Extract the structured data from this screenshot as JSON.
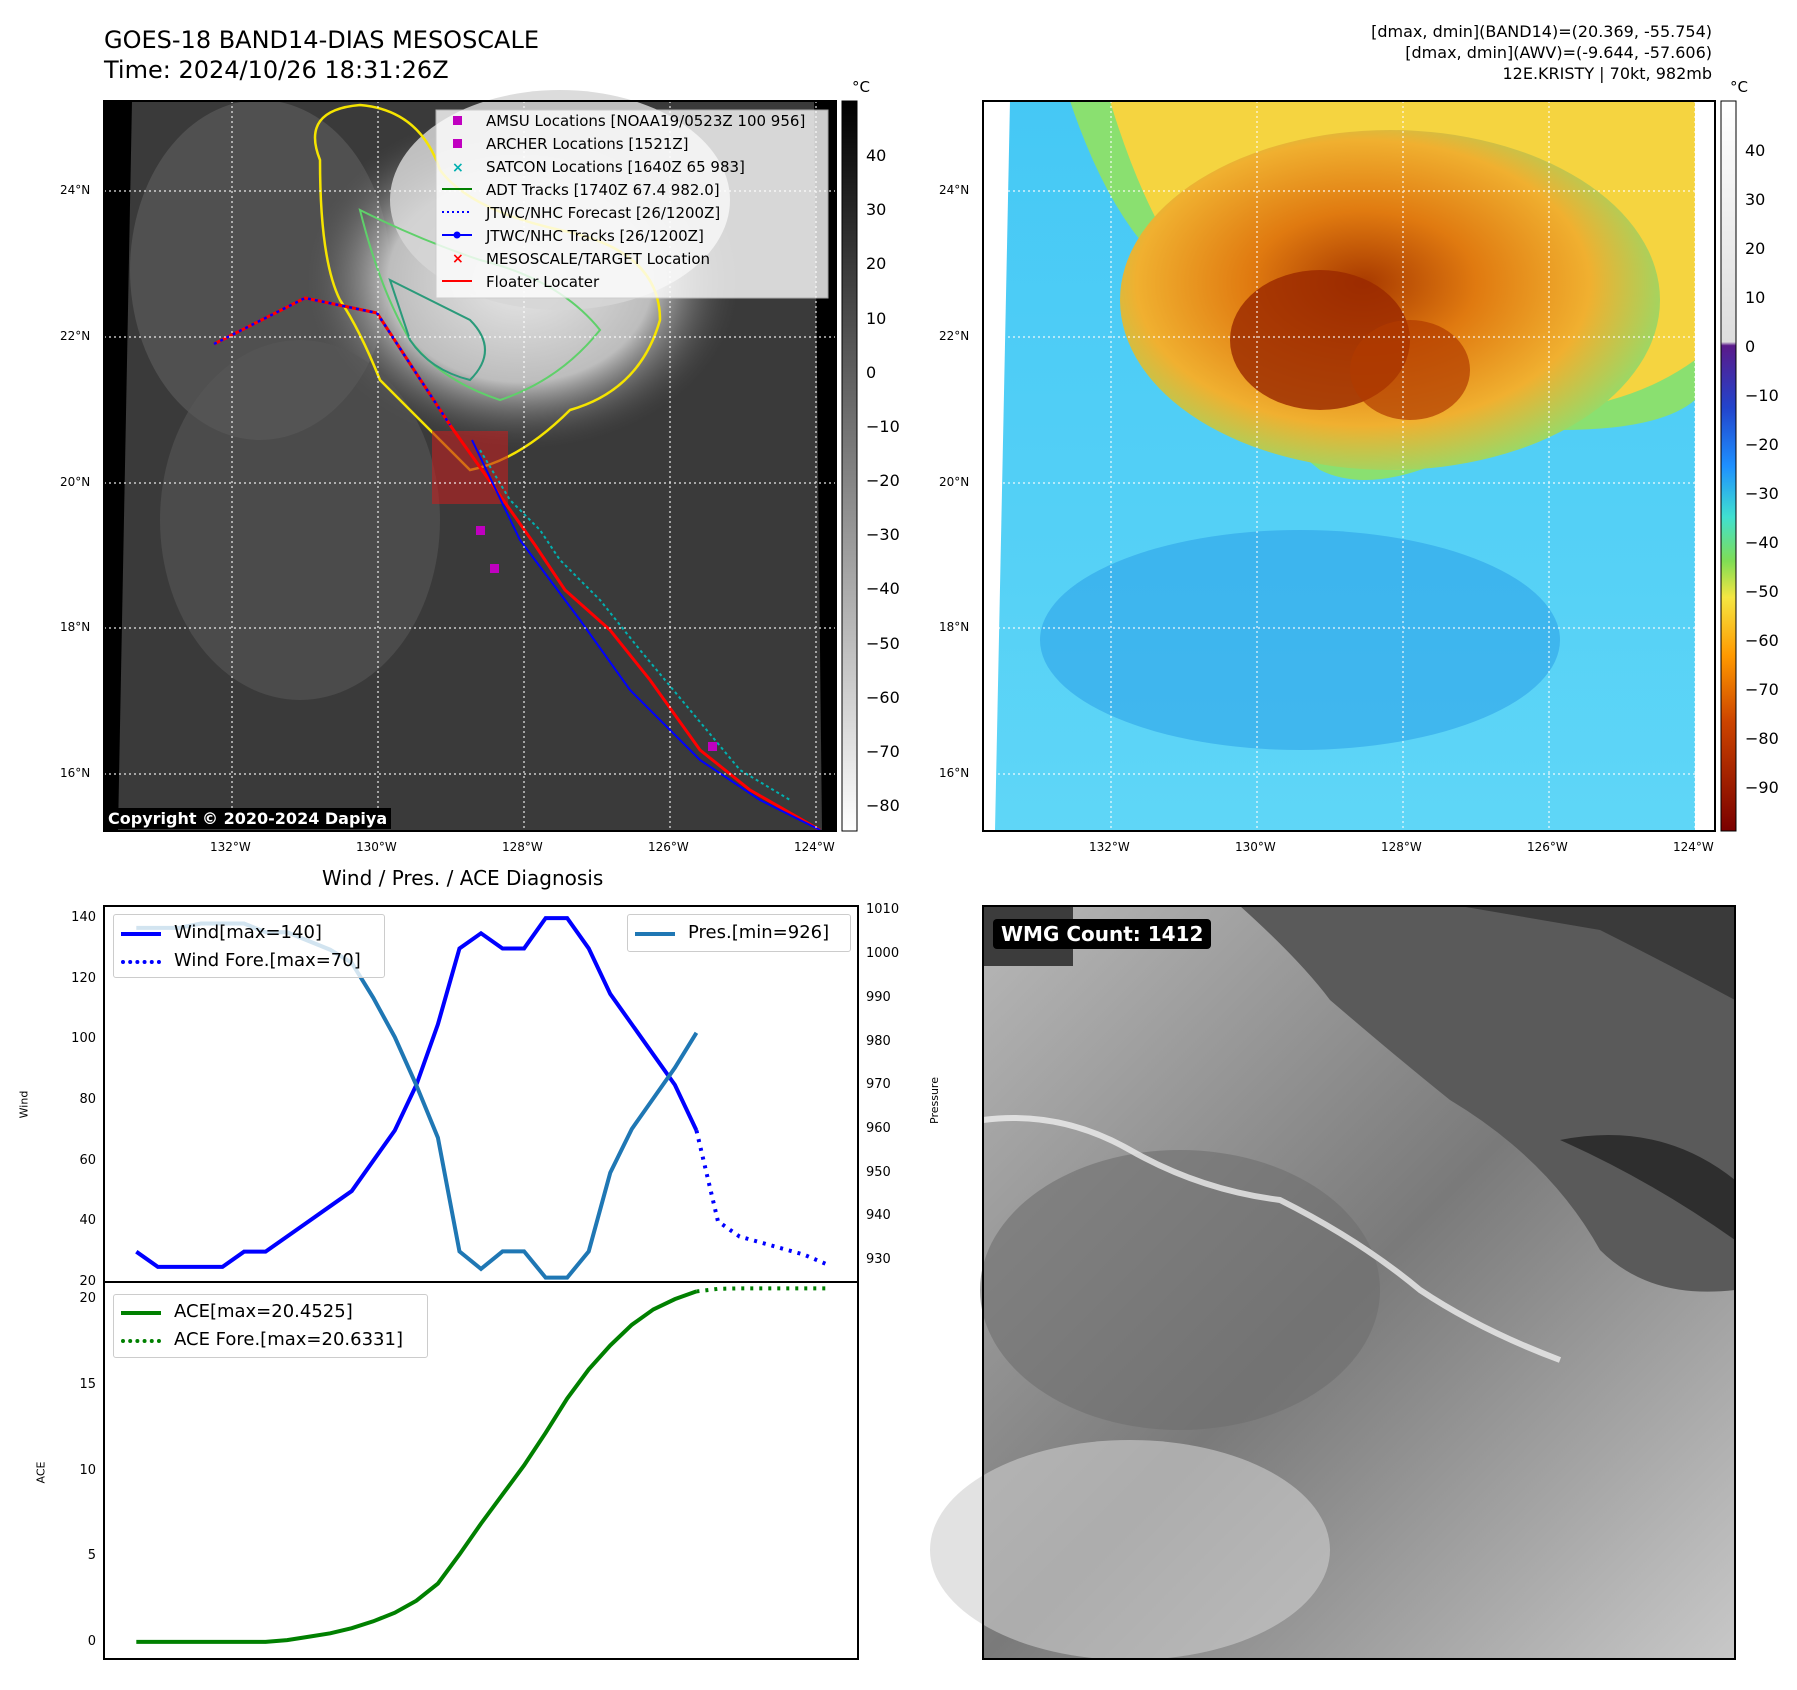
{
  "colors": {
    "wind": "#0000ff",
    "pres": "#1f77b4",
    "ace": "#008000",
    "amsu": "#c000c0",
    "archer": "#c000c0",
    "satcon": "#00b0b0",
    "adt": "#008000",
    "jtwc_forecast": "#0000ff",
    "jtwc_tracks": "#0000ff",
    "target": "#ff0000",
    "floater": "#ff0000"
  },
  "header": {
    "title_line1": "GOES-18 BAND14-DIAS MESOSCALE",
    "title_line2": "Time: 2024/10/26 18:31:26Z",
    "info_line1": "[dmax, dmin](BAND14)=(20.369, -55.754)",
    "info_line2": "[dmax, dmin](AWV)=(-9.644, -57.606)",
    "info_line3": "12E.KRISTY | 70kt, 982mb"
  },
  "map_axes": {
    "lat_labels": [
      "24°N",
      "22°N",
      "20°N",
      "18°N",
      "16°N"
    ],
    "lon_labels": [
      "132°W",
      "130°W",
      "128°W",
      "126°W",
      "124°W"
    ]
  },
  "ir_panel": {
    "legend": [
      {
        "label": "AMSU Locations [NOAA19/0523Z 100 956]",
        "icon": "magenta-square-icon"
      },
      {
        "label": "ARCHER Locations [1521Z]",
        "icon": "magenta-square-icon"
      },
      {
        "label": "SATCON Locations [1640Z 65 983]",
        "icon": "cyan-x-icon"
      },
      {
        "label": "ADT Tracks [1740Z 67.4 982.0]",
        "icon": "green-line-icon"
      },
      {
        "label": "JTWC/NHC Forecast [26/1200Z]",
        "icon": "blue-dotted-line-icon"
      },
      {
        "label": "JTWC/NHC Tracks [26/1200Z]",
        "icon": "blue-dot-line-icon"
      },
      {
        "label": "MESOSCALE/TARGET Location",
        "icon": "red-x-icon"
      },
      {
        "label": "Floater Locater",
        "icon": "red-line-icon"
      }
    ],
    "copyright": "Copyright © 2020-2024 Dapiya",
    "colorbar_unit": "°C",
    "colorbar_ticks": [
      "40",
      "30",
      "20",
      "10",
      "0",
      "−10",
      "−20",
      "−30",
      "−40",
      "−50",
      "−60",
      "−70",
      "−80"
    ]
  },
  "wv_panel": {
    "colorbar_unit": "°C",
    "colorbar_ticks": [
      "40",
      "30",
      "20",
      "10",
      "0",
      "−10",
      "−20",
      "−30",
      "−40",
      "−50",
      "−60",
      "−70",
      "−80",
      "−90"
    ]
  },
  "wmg_panel": {
    "label": "WMG Count: 1412"
  },
  "chart_data": [
    {
      "type": "line",
      "title": "Wind / Pres. / ACE Diagnosis",
      "ylabel": "Wind",
      "ylabel_right": "Pressure",
      "ylim": [
        20,
        144
      ],
      "ylim_right": [
        925,
        1011
      ],
      "yticks": [
        20,
        40,
        60,
        80,
        100,
        120,
        140
      ],
      "yticks_right": [
        930,
        940,
        950,
        960,
        970,
        980,
        990,
        1000,
        1010
      ],
      "legend_left": [
        "Wind[max=140]",
        "Wind Fore.[max=70]"
      ],
      "legend_right": [
        "Pres.[min=926]"
      ],
      "series": [
        {
          "name": "Wind[max=140]",
          "axis": "left",
          "style": "solid",
          "x": [
            0,
            1,
            2,
            3,
            4,
            5,
            6,
            7,
            8,
            9,
            10,
            11,
            12,
            13,
            14,
            15,
            16,
            17,
            18,
            19,
            20,
            21,
            22,
            23,
            24,
            25,
            26
          ],
          "values": [
            30,
            25,
            25,
            25,
            25,
            30,
            30,
            35,
            40,
            45,
            50,
            60,
            70,
            85,
            105,
            130,
            135,
            130,
            130,
            140,
            140,
            130,
            115,
            105,
            95,
            85,
            70
          ]
        },
        {
          "name": "Wind Fore.[max=70]",
          "axis": "left",
          "style": "dotted",
          "x": [
            26,
            27,
            28,
            29,
            30,
            31,
            32
          ],
          "values": [
            70,
            40,
            35,
            33,
            31,
            29,
            26
          ]
        },
        {
          "name": "Pres.[min=926]",
          "axis": "right",
          "style": "solid",
          "x": [
            0,
            1,
            2,
            3,
            4,
            5,
            6,
            7,
            8,
            9,
            10,
            11,
            12,
            13,
            14,
            15,
            16,
            17,
            18,
            19,
            20,
            21,
            22,
            23,
            24,
            25,
            26
          ],
          "values": [
            1006,
            1006,
            1006,
            1007,
            1007,
            1007,
            1005,
            1005,
            1003,
            1001,
            998,
            990,
            981,
            970,
            958,
            932,
            928,
            932,
            932,
            926,
            926,
            932,
            950,
            960,
            967,
            974,
            982
          ]
        }
      ]
    },
    {
      "type": "line",
      "ylabel": "ACE",
      "ylim": [
        -1,
        21
      ],
      "yticks": [
        0,
        5,
        10,
        15,
        20
      ],
      "legend": [
        "ACE[max=20.4525]",
        "ACE Fore.[max=20.6331]"
      ],
      "series": [
        {
          "name": "ACE[max=20.4525]",
          "style": "solid",
          "x": [
            0,
            1,
            2,
            3,
            4,
            5,
            6,
            7,
            8,
            9,
            10,
            11,
            12,
            13,
            14,
            15,
            16,
            17,
            18,
            19,
            20,
            21,
            22,
            23,
            24,
            25,
            26
          ],
          "values": [
            0,
            0,
            0,
            0,
            0,
            0,
            0,
            0.1,
            0.3,
            0.5,
            0.8,
            1.2,
            1.7,
            2.4,
            3.4,
            5.1,
            6.9,
            8.6,
            10.3,
            12.2,
            14.2,
            15.9,
            17.3,
            18.5,
            19.4,
            20.0,
            20.45
          ]
        },
        {
          "name": "ACE Fore.[max=20.6331]",
          "style": "dotted",
          "x": [
            26,
            27,
            28,
            29,
            30,
            31,
            32
          ],
          "values": [
            20.45,
            20.6,
            20.63,
            20.63,
            20.63,
            20.63,
            20.63
          ]
        }
      ]
    }
  ]
}
